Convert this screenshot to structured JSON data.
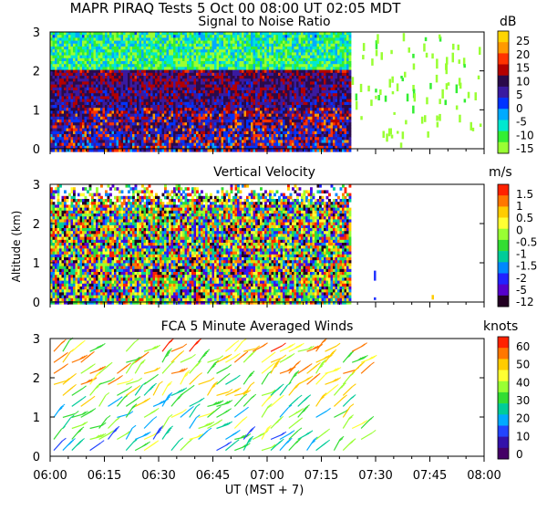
{
  "header": {
    "title": "MAPR PIRAQ Tests  5 Oct 00  08:00 UT  02:05  MDT"
  },
  "chart_data": [
    {
      "type": "heatmap",
      "title": "Signal to Noise Ratio",
      "ylabel": "",
      "ylim": [
        0,
        3
      ],
      "yticks": [
        "0",
        "1",
        "2",
        "3"
      ],
      "xlim_minutes": [
        0,
        120
      ],
      "colorbar_unit": "dB",
      "colorbar_labels": [
        "25",
        "20",
        "15",
        "10",
        "5",
        "0",
        "-5",
        "-10",
        "-15"
      ],
      "colorbar_colors": [
        "#ffd400",
        "#ff9900",
        "#ff3300",
        "#b30000",
        "#2a0a4a",
        "#3a1aa0",
        "#0033ff",
        "#00aaff",
        "#00e8d0",
        "#33ee33",
        "#99ff33"
      ],
      "data_end_minute": 83,
      "grid": false
    },
    {
      "type": "heatmap",
      "title": "Vertical Velocity",
      "ylabel": "Altitude (km)",
      "ylim": [
        0,
        3
      ],
      "yticks": [
        "0",
        "1",
        "2",
        "3"
      ],
      "xlim_minutes": [
        0,
        120
      ],
      "colorbar_unit": "m/s",
      "colorbar_labels": [
        "1.5",
        "1",
        "0.5",
        "0",
        "-0.5",
        "-1",
        "-1.5",
        "-2",
        "-5",
        "-12"
      ],
      "colorbar_colors": [
        "#ff2200",
        "#ff7700",
        "#ffcc00",
        "#ffff33",
        "#99ff33",
        "#33dd33",
        "#00cc99",
        "#0088ff",
        "#2222ff",
        "#5500cc",
        "#220022"
      ],
      "data_end_minute": 83,
      "grid": false
    },
    {
      "type": "scatter",
      "title": "FCA 5 Minute Averaged Winds",
      "ylabel": "",
      "ylim": [
        0,
        3
      ],
      "yticks": [
        "0",
        "1",
        "2",
        "3"
      ],
      "xlim_minutes": [
        0,
        120
      ],
      "colorbar_unit": "knots",
      "colorbar_labels": [
        "60",
        "50",
        "40",
        "30",
        "20",
        "10",
        "0"
      ],
      "colorbar_colors": [
        "#ff2200",
        "#ff7700",
        "#ffcc00",
        "#ffff33",
        "#99ff33",
        "#33dd33",
        "#00cc99",
        "#00aaff",
        "#2244ff",
        "#3311aa",
        "#440066"
      ],
      "marker": "wind-barb",
      "grid": false
    }
  ],
  "x_axis": {
    "tick_labels": [
      "06:00",
      "06:15",
      "06:30",
      "06:45",
      "07:00",
      "07:15",
      "07:30",
      "07:45",
      "08:00"
    ],
    "xlabel": "UT  (MST + 7)"
  }
}
